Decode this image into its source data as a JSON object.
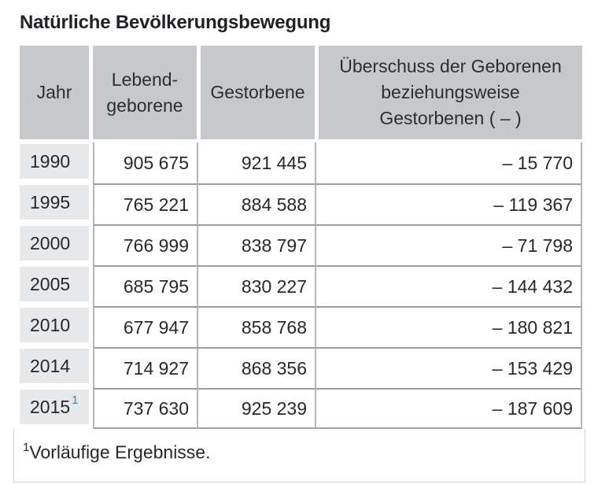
{
  "title": "Natürliche Bevölkerungsbewegung",
  "table": {
    "headers": {
      "year": "Jahr",
      "births": "Lebend-\ngeborene",
      "deaths": "Gestorbene",
      "surplus": "Überschuss der Geborenen\nbeziehungsweise\nGestorbenen ( – )"
    },
    "rows": [
      {
        "year": "1990",
        "births": "905 675",
        "deaths": "921 445",
        "surplus": "– 15 770"
      },
      {
        "year": "1995",
        "births": "765 221",
        "deaths": "884 588",
        "surplus": "– 119 367"
      },
      {
        "year": "2000",
        "births": "766 999",
        "deaths": "838 797",
        "surplus": "– 71 798"
      },
      {
        "year": "2005",
        "births": "685 795",
        "deaths": "830 227",
        "surplus": "– 144 432"
      },
      {
        "year": "2010",
        "births": "677 947",
        "deaths": "858 768",
        "surplus": "– 180 821"
      },
      {
        "year": "2014",
        "births": "714 927",
        "deaths": "868 356",
        "surplus": "– 153 429"
      },
      {
        "year": "2015",
        "marker": "1",
        "births": "737 630",
        "deaths": "925 239",
        "surplus": "– 187 609"
      }
    ]
  },
  "footnote": {
    "marker": "1",
    "text": "Vorläufige Ergebnisse."
  },
  "colors": {
    "header_bg": "#c6c8cb",
    "year_cell_bg": "#e6e8ea",
    "row_line": "#9c9ea0",
    "column_line": "#b5b7b9",
    "footnote_link": "#4d7db5",
    "footer_border": "#d0d2d4",
    "text": "#26282c"
  },
  "chart_data": {
    "type": "table",
    "title": "Natürliche Bevölkerungsbewegung",
    "columns": [
      "Jahr",
      "Lebendgeborene",
      "Gestorbene",
      "Überschuss der Geborenen beziehungsweise Gestorbenen ( – )"
    ],
    "rows": [
      [
        1990,
        905675,
        921445,
        -15770
      ],
      [
        1995,
        765221,
        884588,
        -119367
      ],
      [
        2000,
        766999,
        838797,
        -71798
      ],
      [
        2005,
        685795,
        830227,
        -144432
      ],
      [
        2010,
        677947,
        858768,
        -180821
      ],
      [
        2014,
        714927,
        868356,
        -153429
      ],
      [
        2015,
        737630,
        925239,
        -187609
      ]
    ],
    "footnote": "1 Vorläufige Ergebnisse. (gilt für 2015)"
  }
}
